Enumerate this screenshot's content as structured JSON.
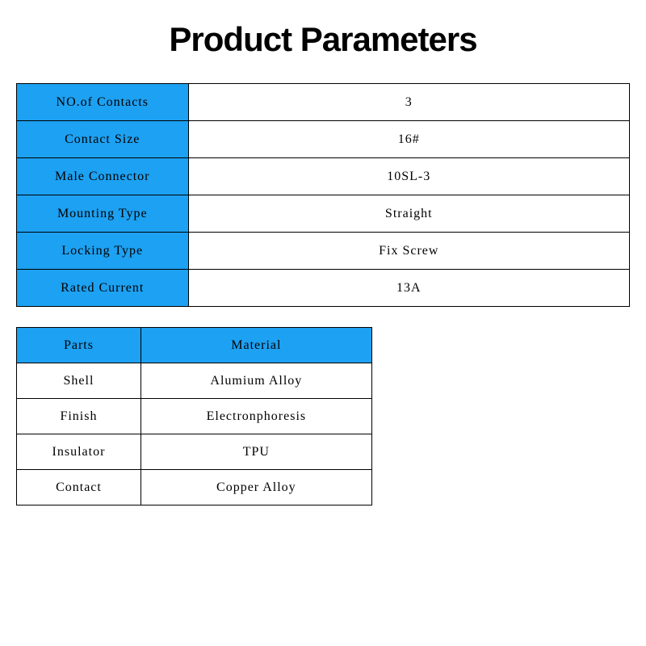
{
  "title": "Product Parameters",
  "colors": {
    "header_bg": "#1da1f2",
    "border": "#000000",
    "background": "#ffffff",
    "text": "#000000"
  },
  "specs": {
    "columns": [
      "label",
      "value"
    ],
    "rows": [
      {
        "label": "NO.of Contacts",
        "value": "3"
      },
      {
        "label": "Contact Size",
        "value": "16#"
      },
      {
        "label": "Male Connector",
        "value": "10SL-3"
      },
      {
        "label": "Mounting Type",
        "value": "Straight"
      },
      {
        "label": "Locking Type",
        "value": "Fix Screw"
      },
      {
        "label": "Rated Current",
        "value": "13A"
      }
    ]
  },
  "materials": {
    "headers": {
      "col1": "Parts",
      "col2": "Material"
    },
    "rows": [
      {
        "part": "Shell",
        "material": "Alumium Alloy"
      },
      {
        "part": "Finish",
        "material": "Electronphoresis"
      },
      {
        "part": "Insulator",
        "material": "TPU"
      },
      {
        "part": "Contact",
        "material": "Copper Alloy"
      }
    ]
  }
}
